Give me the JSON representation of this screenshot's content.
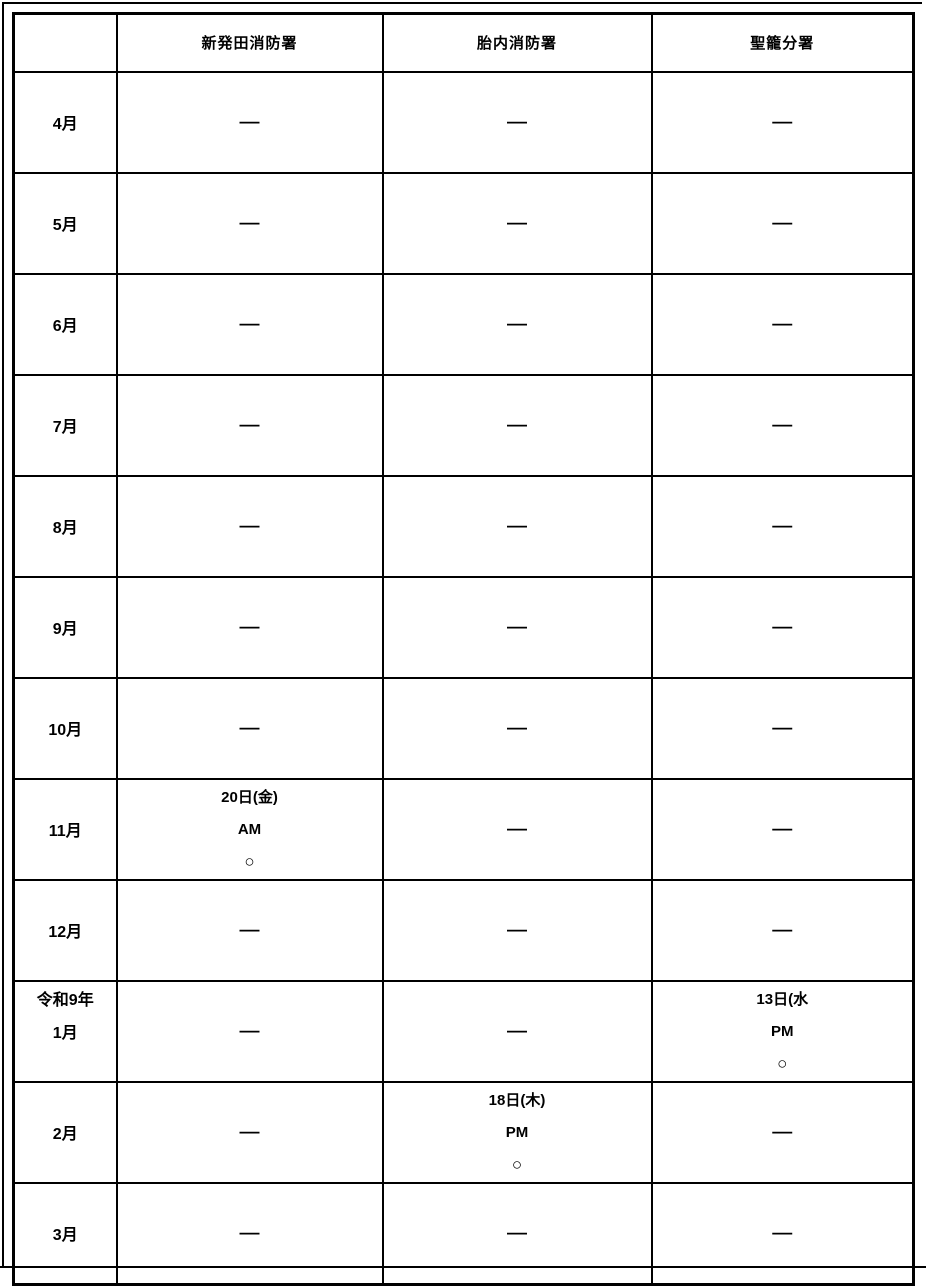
{
  "colors": {
    "background": "#ffffff",
    "text": "#000000",
    "border": "#000000"
  },
  "symbols": {
    "dash": "—",
    "circle": "○"
  },
  "table": {
    "columns": [
      {
        "label": ""
      },
      {
        "label": "新発田消防署"
      },
      {
        "label": "胎内消防署"
      },
      {
        "label": "聖籠分署"
      }
    ],
    "rows": [
      {
        "month": [
          "4月"
        ],
        "cells": [
          [
            "—"
          ],
          [
            "—"
          ],
          [
            "—"
          ]
        ]
      },
      {
        "month": [
          "5月"
        ],
        "cells": [
          [
            "—"
          ],
          [
            "—"
          ],
          [
            "—"
          ]
        ]
      },
      {
        "month": [
          "6月"
        ],
        "cells": [
          [
            "—"
          ],
          [
            "—"
          ],
          [
            "—"
          ]
        ]
      },
      {
        "month": [
          "7月"
        ],
        "cells": [
          [
            "—"
          ],
          [
            "—"
          ],
          [
            "—"
          ]
        ]
      },
      {
        "month": [
          "8月"
        ],
        "cells": [
          [
            "—"
          ],
          [
            "—"
          ],
          [
            "—"
          ]
        ]
      },
      {
        "month": [
          "9月"
        ],
        "cells": [
          [
            "—"
          ],
          [
            "—"
          ],
          [
            "—"
          ]
        ]
      },
      {
        "month": [
          "10月"
        ],
        "cells": [
          [
            "—"
          ],
          [
            "—"
          ],
          [
            "—"
          ]
        ]
      },
      {
        "month": [
          "11月"
        ],
        "cells": [
          [
            "20日(金)",
            "AM",
            "○"
          ],
          [
            "—"
          ],
          [
            "—"
          ]
        ]
      },
      {
        "month": [
          "12月"
        ],
        "cells": [
          [
            "—"
          ],
          [
            "—"
          ],
          [
            "—"
          ]
        ]
      },
      {
        "month": [
          "令和9年",
          "1月"
        ],
        "cells": [
          [
            "—"
          ],
          [
            "—"
          ],
          [
            "13日(水",
            "PM",
            "○"
          ]
        ]
      },
      {
        "month": [
          "2月"
        ],
        "cells": [
          [
            "—"
          ],
          [
            "18日(木)",
            "PM",
            "○"
          ],
          [
            "—"
          ]
        ]
      },
      {
        "month": [
          "3月"
        ],
        "cells": [
          [
            "—"
          ],
          [
            "—"
          ],
          [
            "—"
          ]
        ]
      }
    ]
  }
}
